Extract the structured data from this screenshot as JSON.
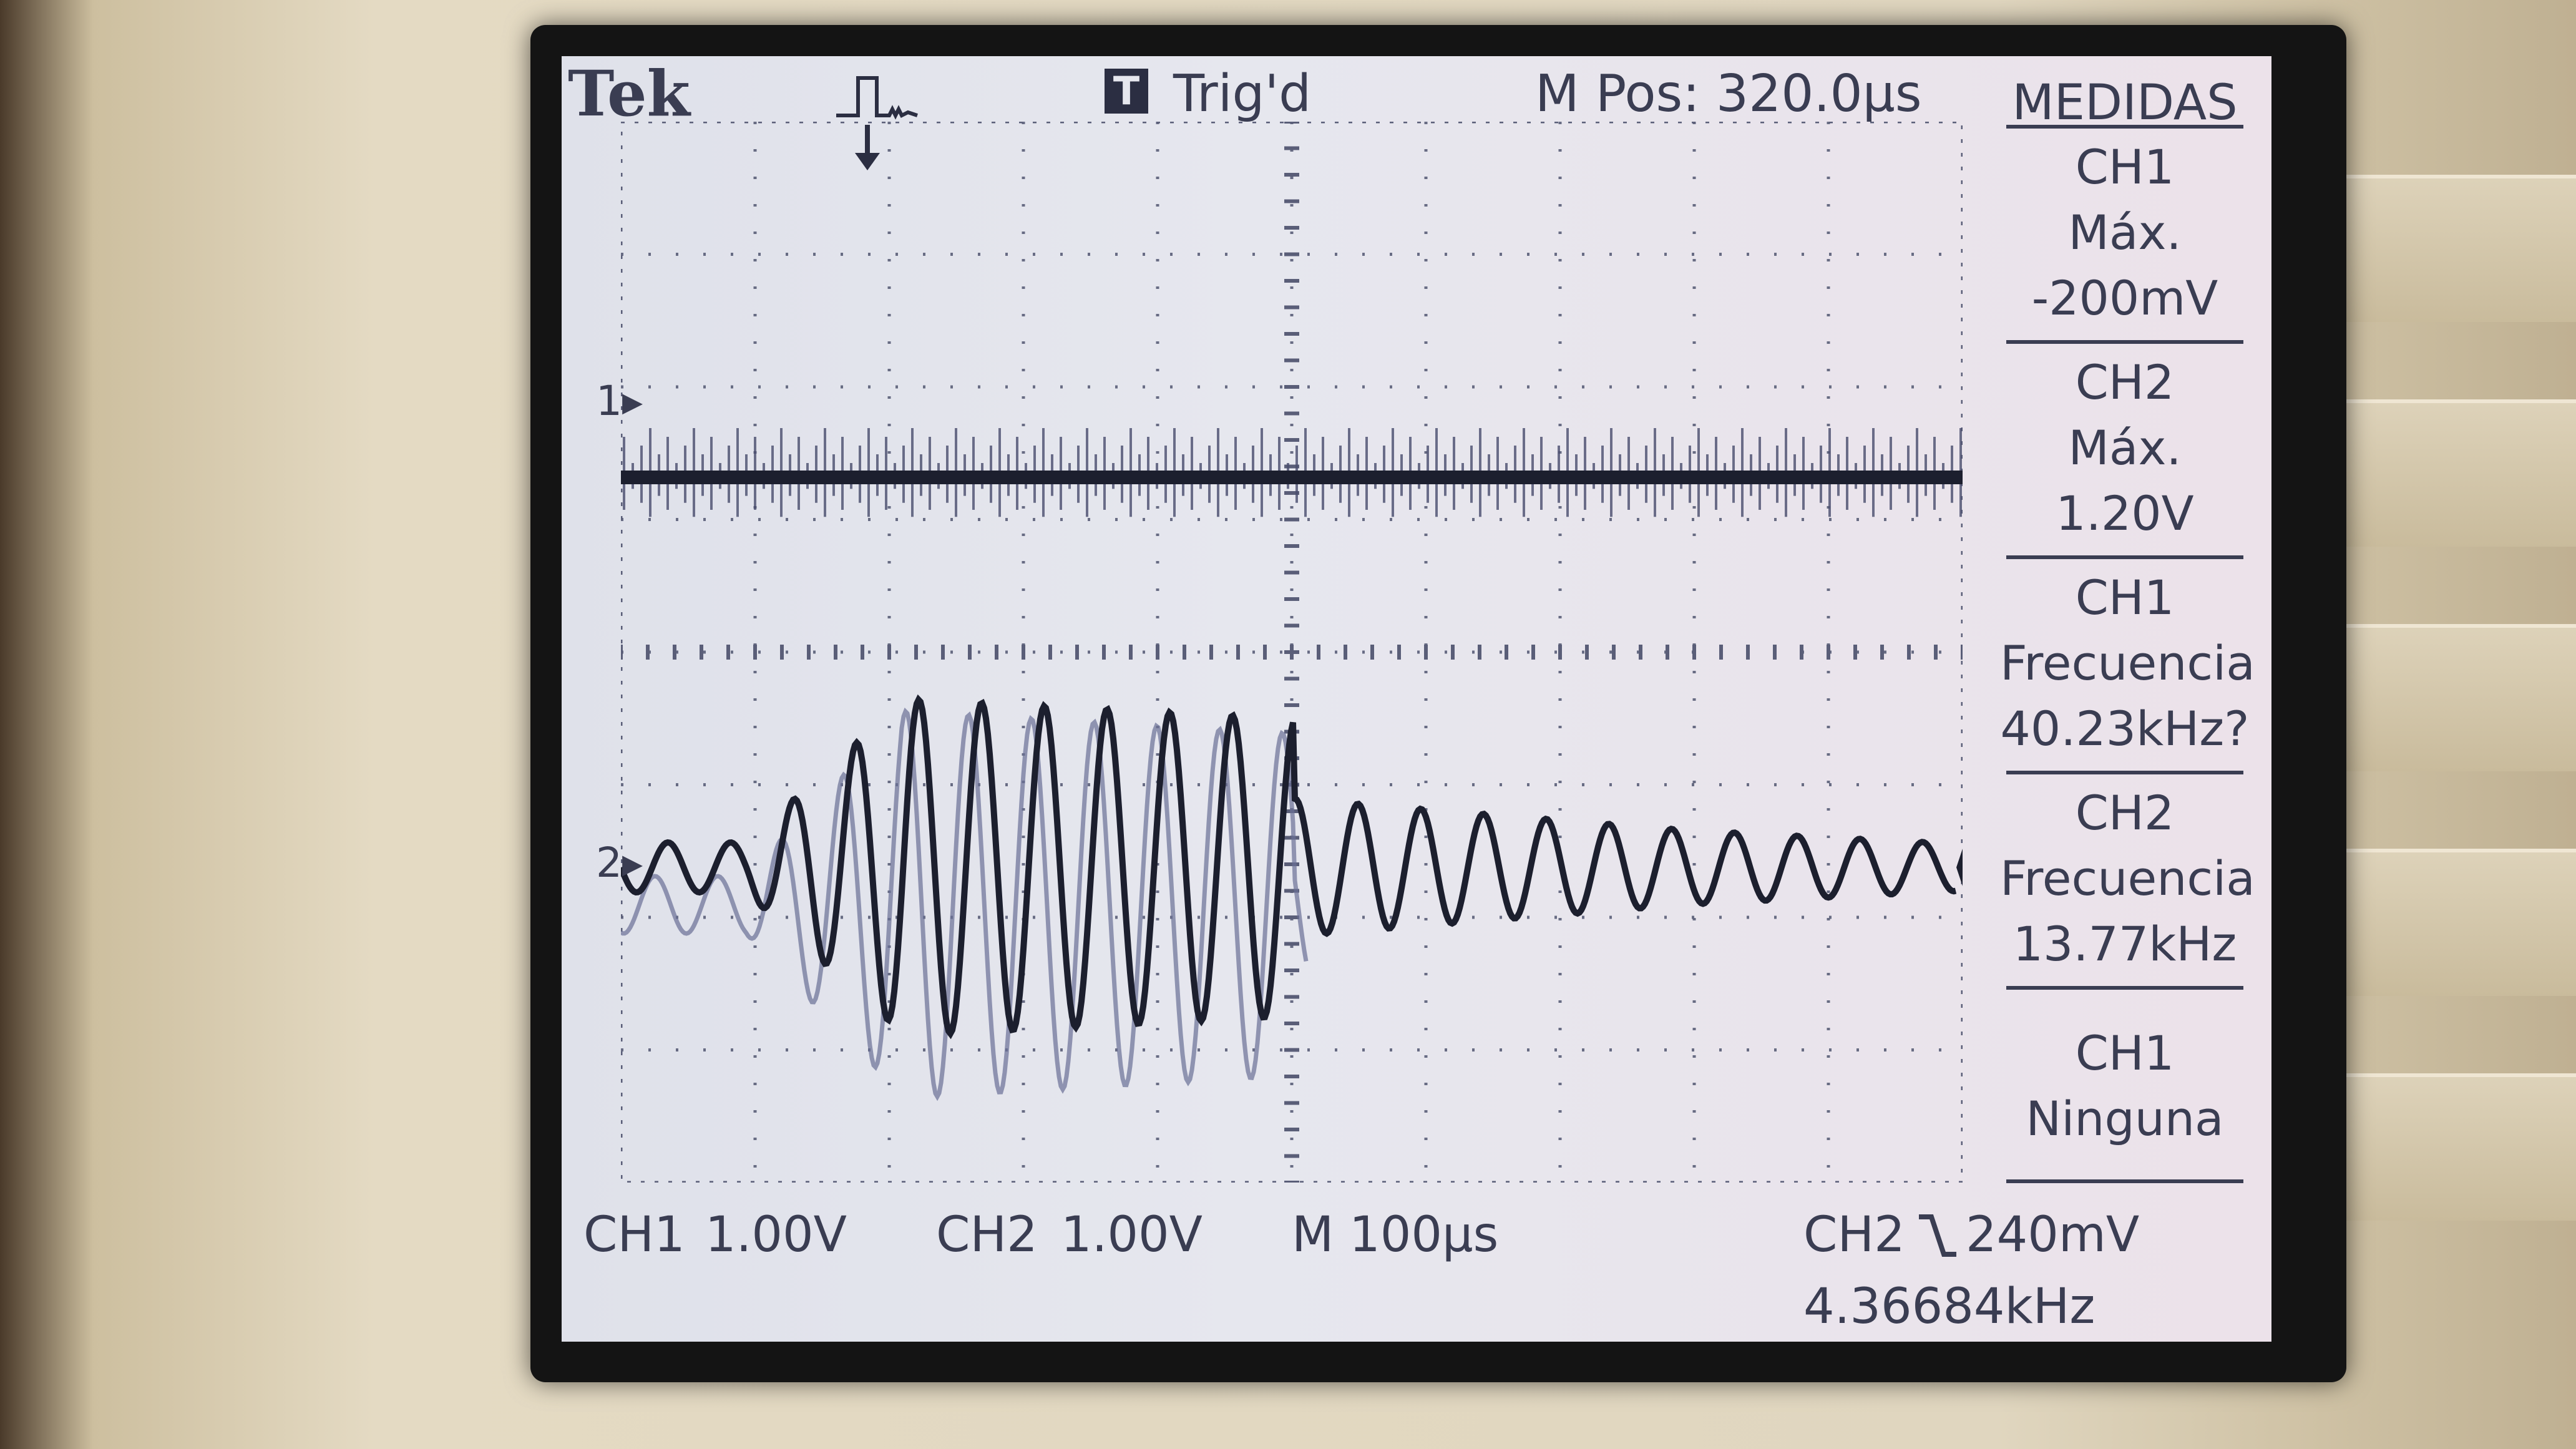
{
  "header": {
    "brand": "Tek",
    "trigger_icon_letter": "T",
    "trigger_status": "Trig'd",
    "m_pos": "M Pos: 320.0µs"
  },
  "measurements": {
    "title": "MEDIDAS",
    "items": [
      {
        "source": "CH1",
        "type": "Máx.",
        "value": "-200mV"
      },
      {
        "source": "CH2",
        "type": "Máx.",
        "value": "1.20V"
      },
      {
        "source": "CH1",
        "type": "Frecuencia",
        "value": "40.23kHz?"
      },
      {
        "source": "CH2",
        "type": "Frecuencia",
        "value": "13.77kHz"
      },
      {
        "source": "CH1",
        "type": "Ninguna",
        "value": ""
      }
    ]
  },
  "channels": {
    "ch1_marker": "1",
    "ch2_marker": "2",
    "ch1_scale_label": "CH1",
    "ch1_scale_value": "1.00V",
    "ch2_scale_label": "CH2",
    "ch2_scale_value": "1.00V"
  },
  "timebase": "M 100µs",
  "trigger": {
    "source": "CH2",
    "slope_icon": "falling-edge-icon",
    "level": "240mV",
    "frequency": "4.36684kHz"
  },
  "colors": {
    "trace": "#1c1f2e",
    "grid_dots": "#5a5e78",
    "screen_text": "#3a3d52",
    "ghost_trace": "#6a6f96"
  }
}
